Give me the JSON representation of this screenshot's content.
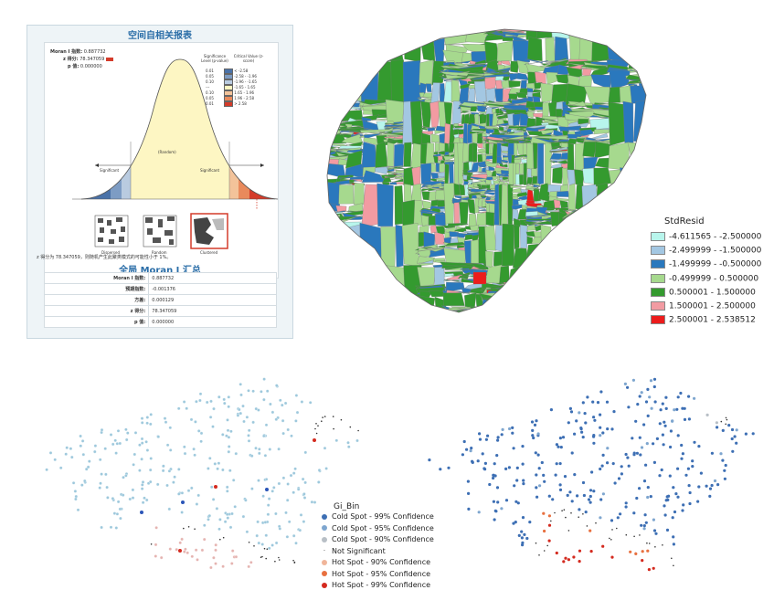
{
  "report": {
    "title": "空间自相关报表",
    "moran_label": "Moran I 指数:",
    "moran_value": "0.887732",
    "z_label": "z 得分:",
    "z_value": "78.347059",
    "p_label": "p 值:",
    "p_value": "0.000000",
    "sig_header": "Significance Level (p-value)",
    "crit_header": "Critical Value (z-score)",
    "levels": [
      {
        "p": "0.01",
        "z": "< -2.58",
        "color": "#4a72a8"
      },
      {
        "p": "0.05",
        "z": "-2.58 - -1.96",
        "color": "#7d9cc4"
      },
      {
        "p": "0.10",
        "z": "-1.96 - -1.65",
        "color": "#b9cbe0"
      },
      {
        "p": "---",
        "z": "-1.65 - 1.65",
        "color": "#fdf6c3"
      },
      {
        "p": "0.10",
        "z": "1.65 - 1.96",
        "color": "#f3c39a"
      },
      {
        "p": "0.05",
        "z": "1.96 - 2.58",
        "color": "#e98a5c"
      },
      {
        "p": "0.01",
        "z": "> 2.58",
        "color": "#d43b2a"
      }
    ],
    "curve_center": "(Random)",
    "left_sig": "Significant",
    "right_sig": "Significant",
    "patterns": [
      "Dispersed",
      "Random",
      "Clustered"
    ],
    "zline": "z 得分为 78.347059，则随机产生此聚类模式的可能性小于 1%。",
    "summary_title": "全局 Moran I 汇总",
    "summary": [
      {
        "k": "Moran I 指数:",
        "v": "0.887732"
      },
      {
        "k": "预期指数:",
        "v": "-0.001376"
      },
      {
        "k": "方差:",
        "v": "0.000129"
      },
      {
        "k": "z 得分:",
        "v": "78.347059"
      },
      {
        "k": "p 值:",
        "v": "0.000000"
      }
    ]
  },
  "map_legend": {
    "title": "StdResid",
    "items": [
      {
        "label": "-4.611565 - -2.500000",
        "color": "#b8f5ec"
      },
      {
        "label": "-2.499999 - -1.500000",
        "color": "#a3c7e2"
      },
      {
        "label": "-1.499999 - -0.500000",
        "color": "#2a78bd"
      },
      {
        "label": "-0.499999 - 0.500000",
        "color": "#a6d98e"
      },
      {
        "label": "0.500001 - 1.500000",
        "color": "#349a2f"
      },
      {
        "label": "1.500001 - 2.500000",
        "color": "#f29ba2"
      },
      {
        "label": "2.500001 - 2.538512",
        "color": "#ec1c1c"
      }
    ]
  },
  "gi_legend": {
    "title": "Gi_Bin",
    "items": [
      {
        "label": "Cold Spot - 99% Confidence",
        "color": "#3d6fb4",
        "kind": "dot"
      },
      {
        "label": "Cold Spot - 95% Confidence",
        "color": "#7ea6cf",
        "kind": "dot"
      },
      {
        "label": "Cold Spot - 90% Confidence",
        "color": "#b8bfc6",
        "kind": "dot"
      },
      {
        "label": "Not Significant",
        "color": "#333333",
        "kind": "dash"
      },
      {
        "label": "Hot Spot - 90% Confidence",
        "color": "#f0b59a",
        "kind": "dot"
      },
      {
        "label": "Hot Spot - 95% Confidence",
        "color": "#e8703f",
        "kind": "dot"
      },
      {
        "label": "Hot Spot - 99% Confidence",
        "color": "#d42a1f",
        "kind": "dot"
      }
    ]
  }
}
